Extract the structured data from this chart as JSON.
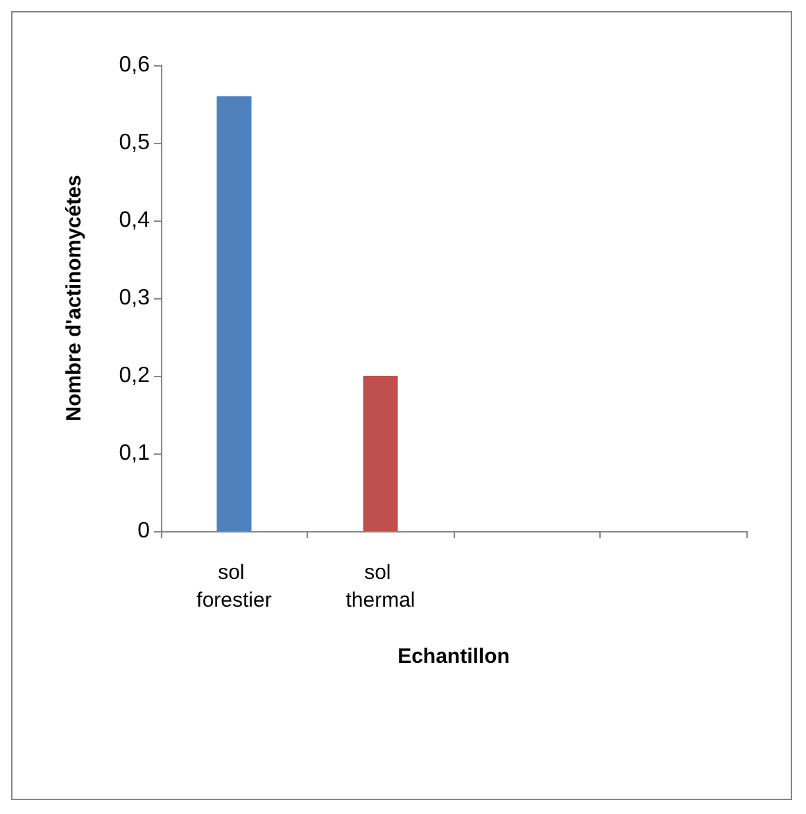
{
  "chart_data": {
    "type": "bar",
    "xlabel": "Echantillon",
    "ylabel": "Nombre d'actinomycétes",
    "categories": [
      "sol forestier",
      "sol thermal",
      null,
      null
    ],
    "values": [
      0.56,
      0.2,
      null,
      null
    ],
    "colors": [
      "#4f81bd",
      "#c0504d",
      null,
      null
    ],
    "ylim": [
      0,
      0.6
    ],
    "yticks": [
      0,
      {
        "value": 0.1,
        "label": "0,1"
      },
      {
        "value": 0.2,
        "label": "0,2"
      },
      {
        "value": 0.3,
        "label": "0,3"
      },
      {
        "value": 0.4,
        "label": "0,4"
      },
      {
        "value": 0.5,
        "label": "0,5"
      },
      {
        "value": 0.6,
        "label": "0,6"
      }
    ],
    "grid": false
  }
}
